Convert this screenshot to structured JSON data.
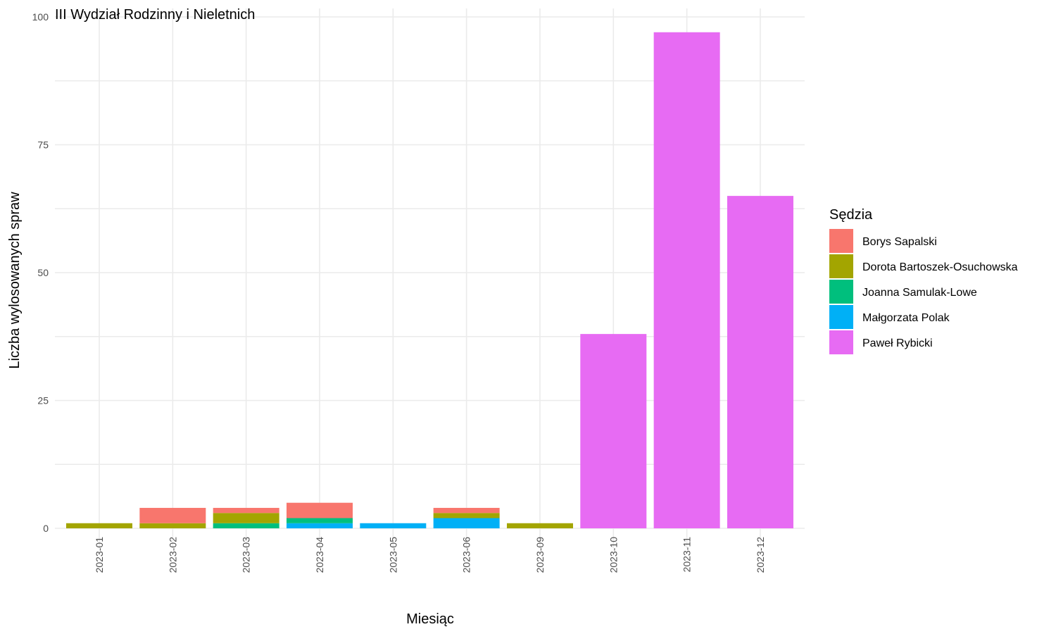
{
  "chart_data": {
    "type": "bar",
    "stacked": true,
    "title": "III Wydział Rodzinny i Nieletnich",
    "xlabel": "Miesiąc",
    "ylabel": "Liczba wylosowanych spraw",
    "ylim": [
      0,
      100
    ],
    "yticks": [
      0,
      25,
      50,
      75,
      100
    ],
    "grid": true,
    "legend": {
      "title": "Sędzia",
      "position": "right"
    },
    "categories": [
      "2023-01",
      "2023-02",
      "2023-03",
      "2023-04",
      "2023-05",
      "2023-06",
      "2023-09",
      "2023-10",
      "2023-11",
      "2023-12"
    ],
    "series": [
      {
        "name": "Małgorzata Polak",
        "color": "#00b0f6",
        "values": [
          0,
          0,
          0,
          1,
          1,
          2,
          0,
          0,
          0,
          0
        ]
      },
      {
        "name": "Joanna Samulak-Lowe",
        "color": "#00bf7d",
        "values": [
          0,
          0,
          1,
          1,
          0,
          0,
          0,
          0,
          0,
          0
        ]
      },
      {
        "name": "Dorota Bartoszek-Osuchowska",
        "color": "#a3a500",
        "values": [
          1,
          1,
          2,
          0,
          0,
          1,
          1,
          0,
          0,
          0
        ]
      },
      {
        "name": "Borys Sapalski",
        "color": "#f8766d",
        "values": [
          0,
          3,
          1,
          3,
          0,
          1,
          0,
          0,
          0,
          0
        ]
      },
      {
        "name": "Paweł Rybicki",
        "color": "#e76bf3",
        "values": [
          0,
          0,
          0,
          0,
          0,
          0,
          0,
          38,
          97,
          65
        ]
      }
    ],
    "legend_order": [
      "Borys Sapalski",
      "Dorota Bartoszek-Osuchowska",
      "Joanna Samulak-Lowe",
      "Małgorzata Polak",
      "Paweł Rybicki"
    ]
  }
}
